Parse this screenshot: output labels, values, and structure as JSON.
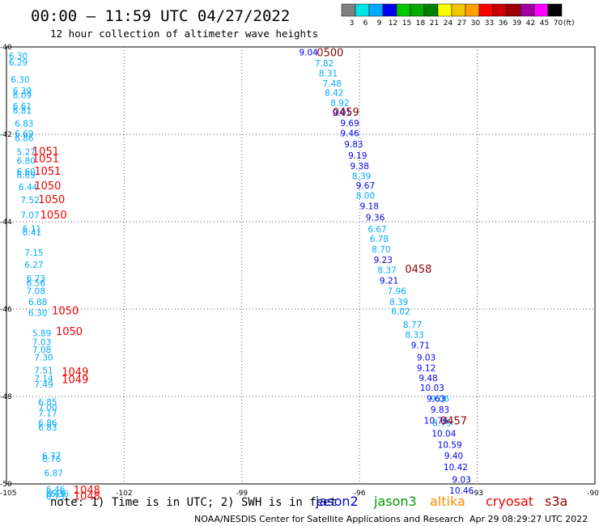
{
  "header": {
    "title": "00:00 – 11:59 UTC 04/27/2022",
    "subtitle": "12 hour collection of altimeter wave heights"
  },
  "legend": {
    "labels": [
      "3",
      "6",
      "9",
      "12",
      "15",
      "18",
      "21",
      "24",
      "27",
      "30",
      "33",
      "36",
      "39",
      "42",
      "45",
      "70"
    ],
    "unit": "(ft)",
    "colors": [
      "#808080",
      "#00e6e6",
      "#00aaff",
      "#0000ee",
      "#00c800",
      "#00aa00",
      "#008000",
      "#ffff00",
      "#f0c800",
      "#ffa000",
      "#ff0000",
      "#c80000",
      "#a00000",
      "#a000a0",
      "#ff00ff",
      "#000000"
    ]
  },
  "chart_data": {
    "type": "scatter",
    "xlim": [
      -105,
      -90
    ],
    "ylim": [
      -50,
      -40
    ],
    "x_ticks": [
      "-105",
      "-102",
      "-99",
      "-96",
      "-93",
      "-90"
    ],
    "y_ticks": [
      "-40",
      "-42",
      "-44",
      "-46",
      "-48",
      "-50"
    ],
    "grid": true,
    "series": [
      {
        "color_class": "6-9 ft",
        "color": "#00aaff",
        "points": [
          {
            "x": -104.7,
            "y": -40.2,
            "v": "6.30"
          },
          {
            "x": -104.7,
            "y": -40.35,
            "v": "6.29"
          },
          {
            "x": -104.65,
            "y": -40.74,
            "v": "6.30"
          },
          {
            "x": -104.6,
            "y": -41.0,
            "v": "6.39"
          },
          {
            "x": -104.6,
            "y": -41.1,
            "v": "6.09"
          },
          {
            "x": -104.6,
            "y": -41.35,
            "v": "6.61"
          },
          {
            "x": -104.6,
            "y": -41.45,
            "v": "6.81"
          },
          {
            "x": -104.55,
            "y": -41.75,
            "v": "6.83"
          },
          {
            "x": -104.55,
            "y": -41.98,
            "v": "6.69"
          },
          {
            "x": -104.55,
            "y": -42.08,
            "v": "6.86"
          },
          {
            "x": -104.5,
            "y": -42.4,
            "v": "5.27"
          },
          {
            "x": -104.5,
            "y": -42.6,
            "v": "6.80"
          },
          {
            "x": -104.5,
            "y": -42.85,
            "v": "6.60"
          },
          {
            "x": -104.5,
            "y": -42.93,
            "v": "6.69"
          },
          {
            "x": -104.45,
            "y": -43.2,
            "v": "6.44"
          },
          {
            "x": -104.4,
            "y": -43.5,
            "v": "7.52"
          },
          {
            "x": -104.4,
            "y": -43.84,
            "v": "7.07"
          },
          {
            "x": -104.35,
            "y": -44.16,
            "v": "6.11"
          },
          {
            "x": -104.35,
            "y": -44.24,
            "v": "6.41"
          },
          {
            "x": -104.3,
            "y": -44.7,
            "v": "7.15"
          },
          {
            "x": -104.3,
            "y": -44.98,
            "v": "6.27"
          },
          {
            "x": -104.25,
            "y": -45.3,
            "v": "6.73"
          },
          {
            "x": -104.25,
            "y": -45.4,
            "v": "6.56"
          },
          {
            "x": -104.25,
            "y": -45.58,
            "v": "7.08"
          },
          {
            "x": -104.2,
            "y": -45.83,
            "v": "6.88"
          },
          {
            "x": -104.2,
            "y": -46.08,
            "v": "6.30"
          },
          {
            "x": -104.1,
            "y": -46.55,
            "v": "5.89"
          },
          {
            "x": -104.1,
            "y": -46.75,
            "v": "7.03"
          },
          {
            "x": -104.1,
            "y": -46.93,
            "v": "7.08"
          },
          {
            "x": -104.05,
            "y": -47.1,
            "v": "7.30"
          },
          {
            "x": -104.05,
            "y": -47.4,
            "v": "7.51"
          },
          {
            "x": -104.05,
            "y": -47.58,
            "v": "7.14"
          },
          {
            "x": -104.05,
            "y": -47.72,
            "v": "7.49"
          },
          {
            "x": -103.95,
            "y": -48.12,
            "v": "6.85"
          },
          {
            "x": -103.95,
            "y": -48.25,
            "v": "7.00"
          },
          {
            "x": -103.95,
            "y": -48.38,
            "v": "7.17"
          },
          {
            "x": -103.95,
            "y": -48.6,
            "v": "6.86"
          },
          {
            "x": -103.95,
            "y": -48.7,
            "v": "6.83"
          },
          {
            "x": -103.85,
            "y": -49.35,
            "v": "6.77"
          },
          {
            "x": -103.85,
            "y": -49.43,
            "v": "6.76"
          },
          {
            "x": -103.8,
            "y": -49.75,
            "v": "6.87"
          },
          {
            "x": -103.75,
            "y": -50.12,
            "v": "6.46"
          },
          {
            "x": -103.75,
            "y": -50.22,
            "v": "6.45"
          },
          {
            "x": -103.75,
            "y": -50.29,
            "v": "6.73"
          },
          {
            "x": -103.65,
            "y": -50.22,
            "v": "6.36"
          },
          {
            "x": -96.9,
            "y": -40.37,
            "v": "7.82"
          },
          {
            "x": -96.8,
            "y": -40.6,
            "v": "8.31"
          },
          {
            "x": -96.7,
            "y": -40.83,
            "v": "7.48"
          },
          {
            "x": -96.65,
            "y": -41.05,
            "v": "8.42"
          },
          {
            "x": -96.5,
            "y": -41.28,
            "v": "8.92"
          },
          {
            "x": -95.95,
            "y": -42.95,
            "v": "8.39"
          },
          {
            "x": -95.85,
            "y": -43.4,
            "v": "8.00"
          },
          {
            "x": -95.55,
            "y": -44.17,
            "v": "6.67"
          },
          {
            "x": -95.5,
            "y": -44.39,
            "v": "6.78"
          },
          {
            "x": -95.45,
            "y": -44.63,
            "v": "8.70"
          },
          {
            "x": -95.3,
            "y": -45.1,
            "v": "8.37"
          },
          {
            "x": -95.05,
            "y": -45.58,
            "v": "7.96"
          },
          {
            "x": -95.0,
            "y": -45.83,
            "v": "8.39"
          },
          {
            "x": -94.95,
            "y": -46.05,
            "v": "6.02"
          },
          {
            "x": -94.65,
            "y": -46.35,
            "v": "8.77"
          },
          {
            "x": -94.6,
            "y": -46.58,
            "v": "8.33"
          },
          {
            "x": -93.95,
            "y": -48.05,
            "v": "9.06"
          },
          {
            "x": -93.9,
            "y": -48.6,
            "v": "8.79"
          }
        ]
      },
      {
        "color_class": "9-12 ft",
        "color": "#0000ee",
        "points": [
          {
            "x": -97.3,
            "y": -40.12,
            "v": "9.04"
          },
          {
            "x": -96.45,
            "y": -41.5,
            "v": "9.01"
          },
          {
            "x": -96.25,
            "y": -41.74,
            "v": "9.69"
          },
          {
            "x": -96.25,
            "y": -41.97,
            "v": "9.46"
          },
          {
            "x": -96.15,
            "y": -42.22,
            "v": "9.83"
          },
          {
            "x": -96.05,
            "y": -42.48,
            "v": "9.19"
          },
          {
            "x": -96.0,
            "y": -42.72,
            "v": "9.38"
          },
          {
            "x": -95.85,
            "y": -43.17,
            "v": "9.67"
          },
          {
            "x": -95.75,
            "y": -43.64,
            "v": "9.18"
          },
          {
            "x": -95.6,
            "y": -43.9,
            "v": "9.36"
          },
          {
            "x": -95.4,
            "y": -44.87,
            "v": "9.23"
          },
          {
            "x": -95.25,
            "y": -45.34,
            "v": "9.21"
          },
          {
            "x": -94.45,
            "y": -46.82,
            "v": "9.71"
          },
          {
            "x": -94.3,
            "y": -47.1,
            "v": "9.03"
          },
          {
            "x": -94.3,
            "y": -47.34,
            "v": "9.12"
          },
          {
            "x": -94.25,
            "y": -47.57,
            "v": "9.48"
          },
          {
            "x": -94.15,
            "y": -47.8,
            "v": "10.03"
          },
          {
            "x": -94.05,
            "y": -48.05,
            "v": "9.63"
          },
          {
            "x": -93.95,
            "y": -48.3,
            "v": "9.83"
          },
          {
            "x": -94.05,
            "y": -48.55,
            "v": "10.76"
          },
          {
            "x": -93.85,
            "y": -48.84,
            "v": "10.04"
          },
          {
            "x": -93.7,
            "y": -49.1,
            "v": "10.59"
          },
          {
            "x": -93.6,
            "y": -49.35,
            "v": "9.40"
          },
          {
            "x": -93.55,
            "y": -49.61,
            "v": "10.42"
          },
          {
            "x": -93.4,
            "y": -49.9,
            "v": "9.03"
          },
          {
            "x": -93.4,
            "y": -50.15,
            "v": "10.46"
          }
        ]
      }
    ],
    "time_labels": [
      {
        "x": -96.75,
        "y": -40.12,
        "t": "0500",
        "color": "#8b0000"
      },
      {
        "x": -96.35,
        "y": -41.48,
        "t": "0459",
        "color": "#8b0000"
      },
      {
        "x": -94.5,
        "y": -45.07,
        "t": "0458",
        "color": "#8b0000"
      },
      {
        "x": -93.6,
        "y": -48.55,
        "t": "0457",
        "color": "#8b0000"
      },
      {
        "x": -104.0,
        "y": -42.38,
        "t": "1051",
        "color": "#ee0000"
      },
      {
        "x": -104.0,
        "y": -42.55,
        "t": "1051",
        "color": "#ee0000"
      },
      {
        "x": -103.95,
        "y": -42.83,
        "t": "1051",
        "color": "#ee0000"
      },
      {
        "x": -103.95,
        "y": -43.17,
        "t": "1050",
        "color": "#ee0000"
      },
      {
        "x": -103.85,
        "y": -43.48,
        "t": "1050",
        "color": "#ee0000"
      },
      {
        "x": -103.8,
        "y": -43.83,
        "t": "1050",
        "color": "#ee0000"
      },
      {
        "x": -103.5,
        "y": -46.03,
        "t": "1050",
        "color": "#ee0000"
      },
      {
        "x": -103.4,
        "y": -46.5,
        "t": "1050",
        "color": "#ee0000"
      },
      {
        "x": -103.25,
        "y": -47.43,
        "t": "1049",
        "color": "#ee0000"
      },
      {
        "x": -103.25,
        "y": -47.6,
        "t": "1049",
        "color": "#ee0000"
      },
      {
        "x": -102.95,
        "y": -50.13,
        "t": "1048",
        "color": "#ee0000"
      },
      {
        "x": -102.95,
        "y": -50.27,
        "t": "1048",
        "color": "#ee0000"
      }
    ]
  },
  "footer": {
    "note": "note:  1) Time is in UTC; 2) SWH is in feet",
    "credit": "NOAA/NESDIS Center for Satellite Applications and Research",
    "timestamp": "Apr 29 08:29:27 UTC 2022",
    "satellites": [
      {
        "name": "jason2",
        "color": "#0000dd"
      },
      {
        "name": "jason3",
        "color": "#009900"
      },
      {
        "name": "altika",
        "color": "#ff8c00"
      },
      {
        "name": "cryosat",
        "color": "#ee0000"
      },
      {
        "name": "s3a",
        "color": "#8b0000"
      }
    ]
  }
}
